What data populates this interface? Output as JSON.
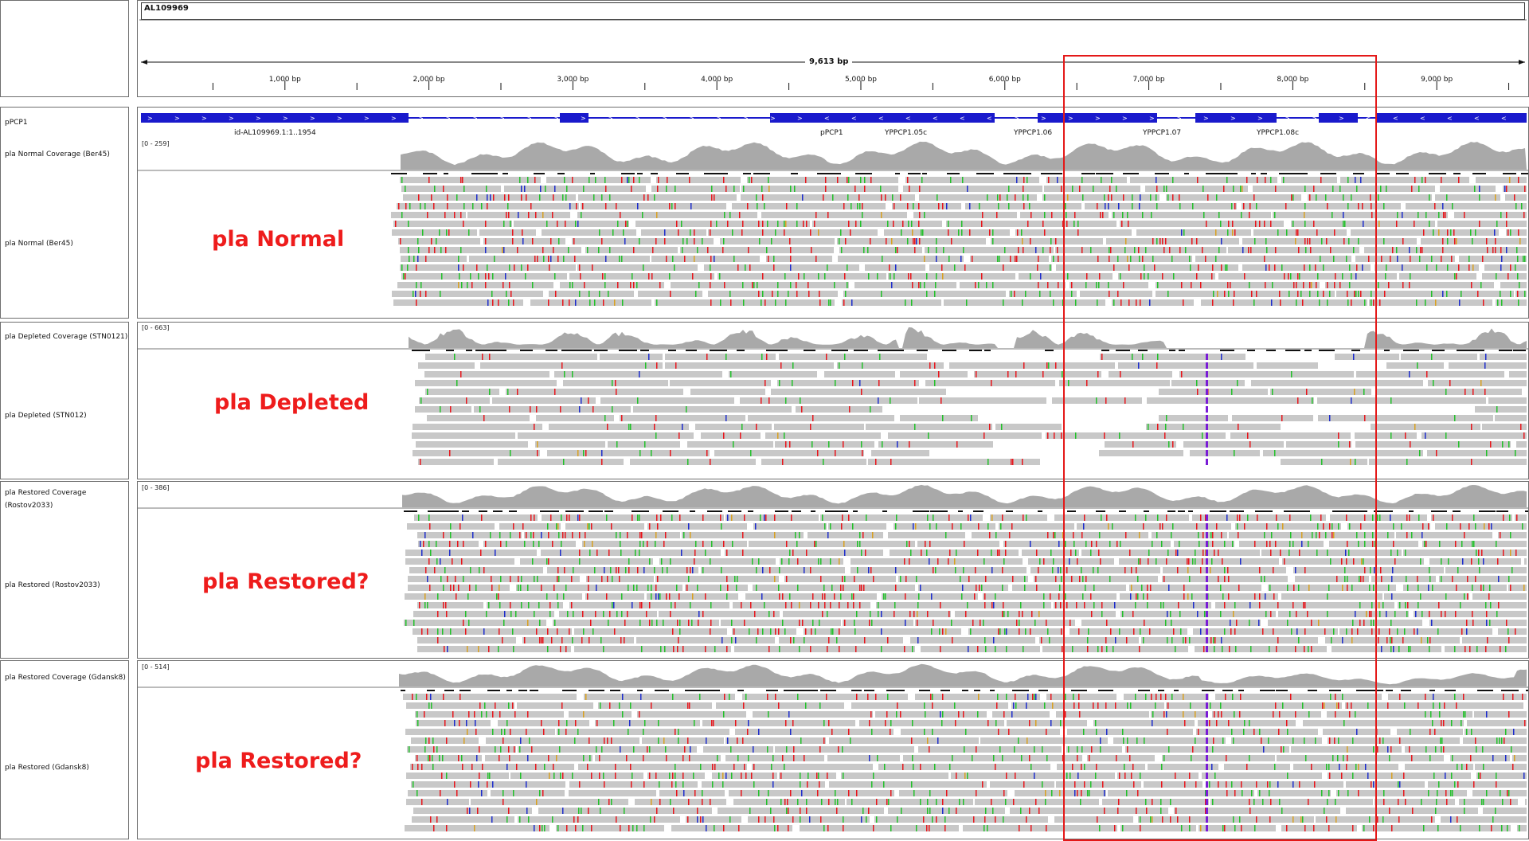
{
  "ruler": {
    "chromosome": "AL109969",
    "span_label": "9,613 bp",
    "ticks": [
      {
        "bp": 1000,
        "label": "1,000 bp"
      },
      {
        "bp": 2000,
        "label": "2,000 bp"
      },
      {
        "bp": 3000,
        "label": "3,000 bp"
      },
      {
        "bp": 4000,
        "label": "4,000 bp"
      },
      {
        "bp": 5000,
        "label": "5,000 bp"
      },
      {
        "bp": 6000,
        "label": "6,000 bp"
      },
      {
        "bp": 7000,
        "label": "7,000 bp"
      },
      {
        "bp": 8000,
        "label": "8,000 bp"
      },
      {
        "bp": 9000,
        "label": "9,000 bp"
      }
    ]
  },
  "annotation": {
    "track_name": "pPCP1",
    "labels": [
      "id-AL109969.1:1..1954",
      "pPCP1",
      "YPPCP1.05c",
      "YPPCP1.06",
      "YPPCP1.07",
      "YPPCP1.08c"
    ]
  },
  "panels": [
    {
      "coverage_name": "pla Normal Coverage (Ber45)",
      "coverage_range": "[0 - 259]",
      "alignment_name": "pla Normal (Ber45)",
      "overlay": "pla Normal"
    },
    {
      "coverage_name": "pla Depleted Coverage (STN0121)",
      "coverage_range": "[0 - 663]",
      "alignment_name": "pla Depleted (STN012)",
      "overlay": "pla Depleted"
    },
    {
      "coverage_name": "pla Restored Coverage (Rostov2033)",
      "coverage_range": "[0 - 386]",
      "alignment_name": "pla Restored (Rostov2033)",
      "overlay": "pla Restored?"
    },
    {
      "coverage_name": "pla Restored Coverage (Gdansk8)",
      "coverage_range": "[0 - 514]",
      "alignment_name": "pla Restored (Gdansk8)",
      "overlay": "pla Restored?"
    }
  ],
  "colors": {
    "gene_blue": "#1a1acc",
    "coverage_gray": "#a9a9a9",
    "read_gray": "#c8c8c8",
    "highlight_red": "#e41818",
    "label_red": "#ee1c1c"
  }
}
